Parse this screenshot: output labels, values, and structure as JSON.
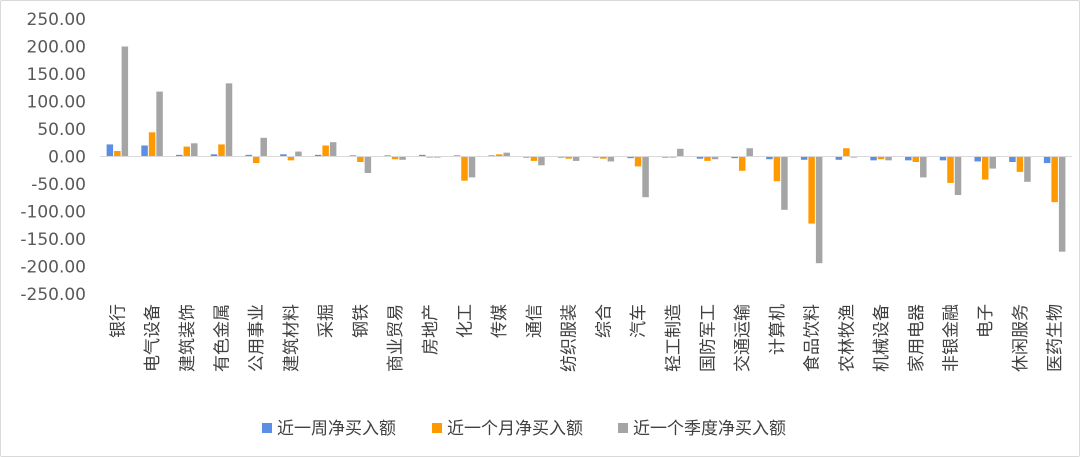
{
  "chart_data": {
    "type": "bar",
    "title": "",
    "xlabel": "",
    "ylabel": "",
    "ylim": [
      -250,
      250
    ],
    "ytick_step": 50,
    "ytick_labels": [
      "250.00",
      "200.00",
      "150.00",
      "100.00",
      "50.00",
      "0.00",
      "-50.00",
      "-100.00",
      "-150.00",
      "-200.00",
      "-250.00"
    ],
    "grid": false,
    "legend_position": "bottom",
    "categories": [
      "银行",
      "电气设备",
      "建筑装饰",
      "有色金属",
      "公用事业",
      "建筑材料",
      "采掘",
      "钢铁",
      "商业贸易",
      "房地产",
      "化工",
      "传媒",
      "通信",
      "纺织服装",
      "综合",
      "汽车",
      "轻工制造",
      "国防军工",
      "交通运输",
      "计算机",
      "食品饮料",
      "农林牧渔",
      "机械设备",
      "家用电器",
      "非银金融",
      "电子",
      "休闲服务",
      "医药生物"
    ],
    "series": [
      {
        "name": "近一周净买入额",
        "color": "#5B8FE6",
        "values": [
          22,
          20,
          3,
          4,
          3,
          4,
          3,
          2,
          2,
          3,
          2,
          2,
          -2,
          -2,
          -2,
          -3,
          -2,
          -4,
          -3,
          -5,
          -6,
          -6,
          -7,
          -7,
          -7,
          -9,
          -10,
          -12
        ]
      },
      {
        "name": "近一个月净买入额",
        "color": "#FF9900",
        "values": [
          10,
          44,
          18,
          22,
          -12,
          -7,
          20,
          -10,
          -5,
          -2,
          -44,
          4,
          -8,
          -4,
          -4,
          -18,
          -2,
          -8,
          -26,
          -45,
          -122,
          15,
          -5,
          -10,
          -48,
          -42,
          -28,
          -83
        ]
      },
      {
        "name": "近一个季度净买入额",
        "color": "#A5A5A5",
        "values": [
          200,
          118,
          24,
          133,
          34,
          9,
          26,
          -30,
          -6,
          -2,
          -38,
          7,
          -16,
          -8,
          -9,
          -74,
          14,
          -5,
          15,
          -97,
          -194,
          -2,
          -7,
          -38,
          -70,
          -22,
          -46,
          -173
        ]
      }
    ]
  }
}
